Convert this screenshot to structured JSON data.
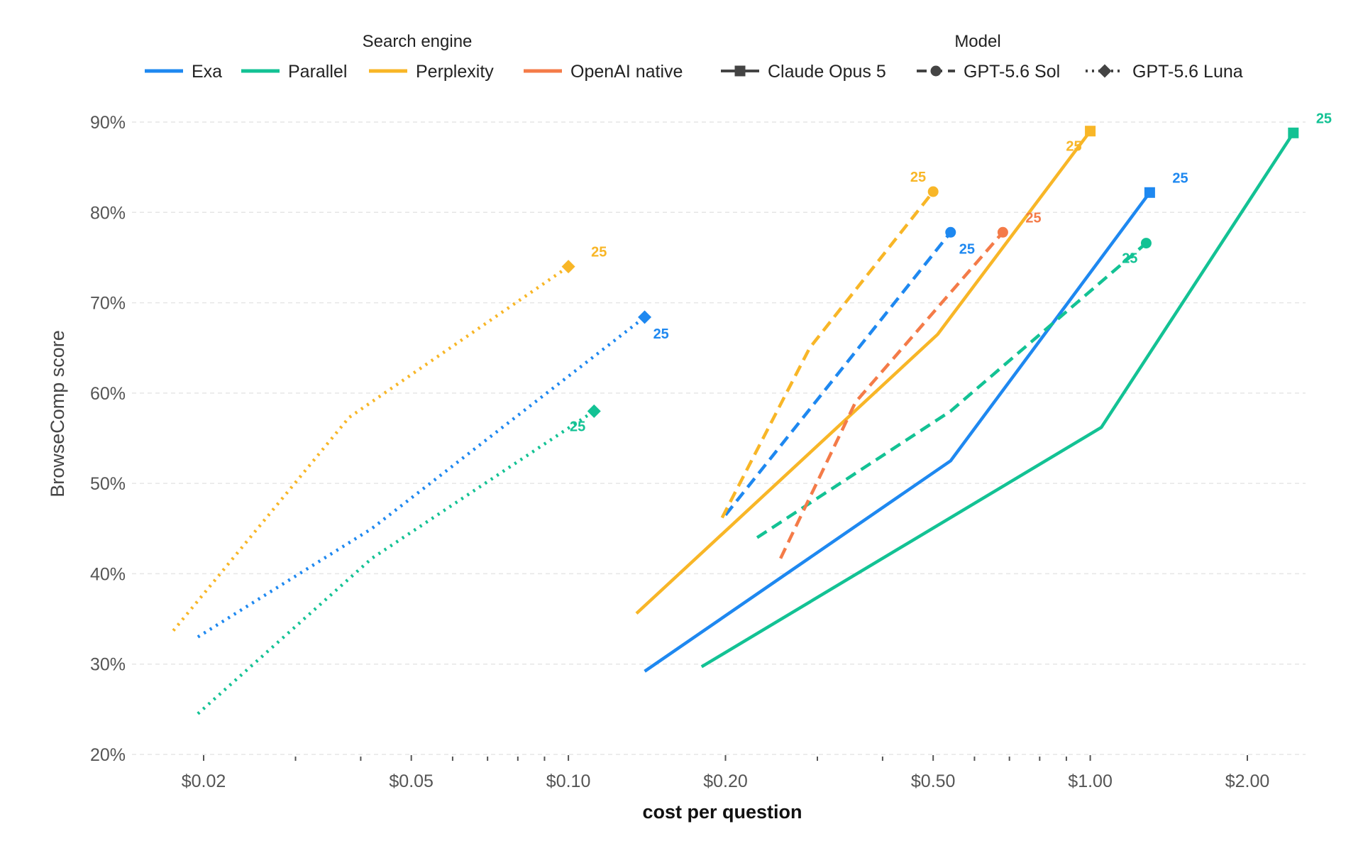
{
  "chart_data": {
    "type": "line",
    "xlabel": "cost per question",
    "ylabel": "BrowseComp score",
    "xscale": "log",
    "xlim": [
      0.0155,
      2.75
    ],
    "ylim": [
      20,
      90
    ],
    "x_ticks": [
      {
        "value": 0.02,
        "label": "$0.02"
      },
      {
        "value": 0.05,
        "label": "$0.05"
      },
      {
        "value": 0.1,
        "label": "$0.10"
      },
      {
        "value": 0.2,
        "label": "$0.20"
      },
      {
        "value": 0.5,
        "label": "$0.50"
      },
      {
        "value": 1.0,
        "label": "$1.00"
      },
      {
        "value": 2.0,
        "label": "$2.00"
      }
    ],
    "x_minor_ticks": [
      0.03,
      0.04,
      0.06,
      0.07,
      0.08,
      0.09,
      0.3,
      0.4,
      0.6,
      0.7,
      0.8,
      0.9
    ],
    "y_ticks": [
      {
        "value": 20,
        "label": "20%"
      },
      {
        "value": 30,
        "label": "30%"
      },
      {
        "value": 40,
        "label": "40%"
      },
      {
        "value": 50,
        "label": "50%"
      },
      {
        "value": 60,
        "label": "60%"
      },
      {
        "value": 70,
        "label": "70%"
      },
      {
        "value": 80,
        "label": "80%"
      },
      {
        "value": 90,
        "label": "90%"
      }
    ],
    "grid": "horizontal dashed",
    "legend": {
      "placement": "top",
      "engine_title": "Search engine",
      "model_title": "Model",
      "engines": [
        {
          "name": "Exa",
          "color": "#1e88f0"
        },
        {
          "name": "Parallel",
          "color": "#13c294"
        },
        {
          "name": "Perplexity",
          "color": "#f8b627"
        },
        {
          "name": "OpenAI native",
          "color": "#f47b48"
        }
      ],
      "models": [
        {
          "name": "Claude Opus 5",
          "linestyle": "solid",
          "marker": "square"
        },
        {
          "name": "GPT-5.6 Sol",
          "linestyle": "dashed",
          "marker": "circle"
        },
        {
          "name": "GPT-5.6 Luna",
          "linestyle": "dotted",
          "marker": "diamond"
        }
      ]
    },
    "series": [
      {
        "name": "Exa",
        "model": "Claude Opus 5",
        "color": "#1e88f0",
        "linestyle": "solid",
        "marker": "square",
        "x": [
          0.14,
          0.54,
          1.3
        ],
        "y": [
          29.2,
          52.5,
          82.2
        ],
        "end_label": "25",
        "label_pos": "right-high"
      },
      {
        "name": "Parallel",
        "model": "Claude Opus 5",
        "color": "#13c294",
        "linestyle": "solid",
        "marker": "square",
        "x": [
          0.18,
          1.05,
          2.45
        ],
        "y": [
          29.7,
          56.2,
          88.8
        ],
        "end_label": "25",
        "label_pos": "right-high"
      },
      {
        "name": "Perplexity",
        "model": "Claude Opus 5",
        "color": "#f8b627",
        "linestyle": "solid",
        "marker": "square",
        "x": [
          0.135,
          0.51,
          1.0
        ],
        "y": [
          35.6,
          66.5,
          89.0
        ],
        "end_label": "25",
        "label_pos": "left-low"
      },
      {
        "name": "Exa",
        "model": "GPT-5.6 Sol",
        "color": "#1e88f0",
        "linestyle": "dashed",
        "marker": "circle",
        "x": [
          0.2,
          0.54
        ],
        "y": [
          46.5,
          77.8
        ],
        "end_label": "25",
        "label_pos": "right-low"
      },
      {
        "name": "Parallel",
        "model": "GPT-5.6 Sol",
        "color": "#13c294",
        "linestyle": "dashed",
        "marker": "circle",
        "x": [
          0.23,
          0.54,
          1.28
        ],
        "y": [
          44.0,
          58.0,
          76.6
        ],
        "end_label": "25",
        "label_pos": "left-low"
      },
      {
        "name": "Perplexity",
        "model": "GPT-5.6 Sol",
        "color": "#f8b627",
        "linestyle": "dashed",
        "marker": "circle",
        "x": [
          0.197,
          0.29,
          0.5
        ],
        "y": [
          46.2,
          65.0,
          82.3
        ],
        "end_label": "25",
        "label_pos": "left-high"
      },
      {
        "name": "OpenAI native",
        "model": "GPT-5.6 Sol",
        "color": "#f47b48",
        "linestyle": "dashed",
        "marker": "circle",
        "x": [
          0.255,
          0.355,
          0.68
        ],
        "y": [
          41.7,
          59.0,
          77.8
        ],
        "end_label": "25",
        "label_pos": "right-high"
      },
      {
        "name": "Exa",
        "model": "GPT-5.6 Luna",
        "color": "#1e88f0",
        "linestyle": "dotted",
        "marker": "diamond",
        "x": [
          0.0195,
          0.042,
          0.14
        ],
        "y": [
          33.0,
          45.0,
          68.4
        ],
        "end_label": "25",
        "label_pos": "right-low"
      },
      {
        "name": "Parallel",
        "model": "GPT-5.6 Luna",
        "color": "#13c294",
        "linestyle": "dotted",
        "marker": "diamond",
        "x": [
          0.0195,
          0.042,
          0.112
        ],
        "y": [
          24.5,
          41.7,
          58.0
        ],
        "end_label": "25",
        "label_pos": "left-low"
      },
      {
        "name": "Perplexity",
        "model": "GPT-5.6 Luna",
        "color": "#f8b627",
        "linestyle": "dotted",
        "marker": "diamond",
        "x": [
          0.0175,
          0.038,
          0.1
        ],
        "y": [
          33.7,
          57.3,
          74.0
        ],
        "end_label": "25",
        "label_pos": "right-high"
      }
    ]
  }
}
